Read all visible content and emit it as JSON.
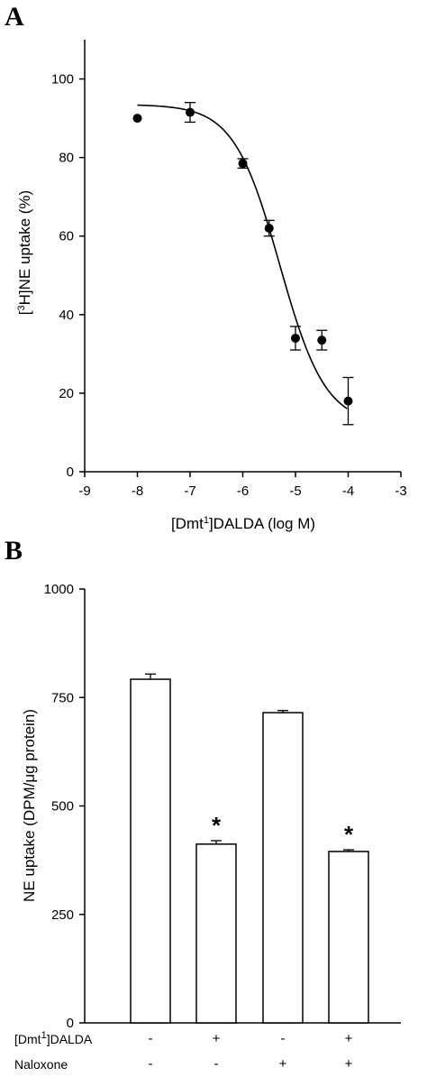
{
  "chart_data": [
    {
      "type": "scatter",
      "panel_label": "A",
      "xlabel": "[Dmt1]DALDA (log M)",
      "ylabel": "[3H]NE uptake (%)",
      "xlim": [
        -9,
        -3
      ],
      "ylim": [
        0,
        110
      ],
      "x_ticks": [
        -9,
        -8,
        -7,
        -6,
        -5,
        -4,
        -3
      ],
      "y_ticks": [
        0,
        20,
        40,
        60,
        80,
        100
      ],
      "points": [
        {
          "x": -8,
          "y": 90,
          "err": 0
        },
        {
          "x": -7,
          "y": 91.5,
          "err": 2.5
        },
        {
          "x": -6,
          "y": 78.5,
          "err": 1.2
        },
        {
          "x": -5.5,
          "y": 62,
          "err": 2
        },
        {
          "x": -5,
          "y": 34,
          "err": 3
        },
        {
          "x": -4.5,
          "y": 33.5,
          "err": 2.5
        },
        {
          "x": -4,
          "y": 18,
          "err": 6
        }
      ],
      "fit": {
        "model": "sigmoid",
        "top": 93.5,
        "bottom": 12,
        "log_ec50": -5.3,
        "hill": 1.0
      },
      "grid": false
    },
    {
      "type": "bar",
      "panel_label": "B",
      "ylabel": "NE uptake (DPM/μg protein)",
      "ylim": [
        0,
        1000
      ],
      "y_ticks": [
        0,
        250,
        500,
        750,
        1000
      ],
      "values": [
        792,
        412,
        715,
        395
      ],
      "errors": [
        12,
        8,
        5,
        4
      ],
      "significance": [
        "",
        "*",
        "",
        "*"
      ],
      "conditions": [
        {
          "label": "[Dmt1]DALDA",
          "signs": [
            "-",
            "+",
            "-",
            "+"
          ]
        },
        {
          "label": "Naloxone",
          "signs": [
            "-",
            "-",
            "+",
            "+"
          ]
        }
      ],
      "grid": false
    }
  ]
}
